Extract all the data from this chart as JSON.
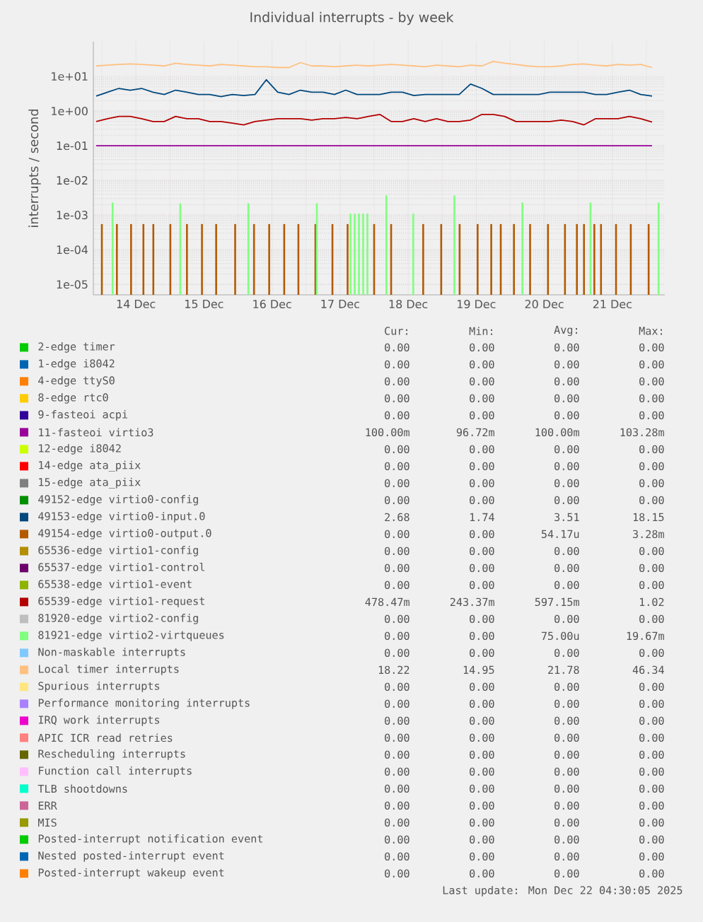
{
  "chart_data": {
    "type": "line",
    "title": "Individual interrupts - by week",
    "ylabel": "interrupts / second",
    "log": "y",
    "grid": true,
    "legend": "bottom",
    "line_style": "solid",
    "xlim": [
      "2025-12-13T21:00",
      "2025-12-22T06:30"
    ],
    "xticks": [
      {
        "value": "2025-12-14",
        "label": null
      },
      {
        "value": "2025-12-14T12:00",
        "label": "14 Dec"
      },
      {
        "value": "2025-12-15",
        "label": null
      },
      {
        "value": "2025-12-15T12:00",
        "label": "15 Dec"
      },
      {
        "value": "2025-12-16",
        "label": null
      },
      {
        "value": "2025-12-16T12:00",
        "label": "16 Dec"
      },
      {
        "value": "2025-12-17",
        "label": null
      },
      {
        "value": "2025-12-17T12:00",
        "label": "17 Dec"
      },
      {
        "value": "2025-12-18",
        "label": null
      },
      {
        "value": "2025-12-18T12:00",
        "label": "18 Dec"
      },
      {
        "value": "2025-12-19",
        "label": null
      },
      {
        "value": "2025-12-19T12:00",
        "label": "19 Dec"
      },
      {
        "value": "2025-12-20",
        "label": null
      },
      {
        "value": "2025-12-20T12:00",
        "label": "20 Dec"
      },
      {
        "value": "2025-12-21",
        "label": null
      },
      {
        "value": "2025-12-21T12:00",
        "label": "21 Dec"
      },
      {
        "value": "2025-12-22",
        "label": null
      }
    ],
    "ylim": [
      5e-06,
      100
    ],
    "yticks": [
      {
        "value": 1e-05,
        "label": "1e-05"
      },
      {
        "value": 0.0001,
        "label": "1e-04"
      },
      {
        "value": 0.001,
        "label": "1e-03"
      },
      {
        "value": 0.01,
        "label": "1e-02"
      },
      {
        "value": 0.1,
        "label": "1e-01"
      },
      {
        "value": 1,
        "label": "1e+00"
      },
      {
        "value": 10,
        "label": "1e+01"
      }
    ],
    "x": [
      "2025-12-13T22:00",
      "2025-12-14T02:00",
      "2025-12-14T06:00",
      "2025-12-14T10:00",
      "2025-12-14T14:00",
      "2025-12-14T18:00",
      "2025-12-14T22:00",
      "2025-12-15T02:00",
      "2025-12-15T06:00",
      "2025-12-15T10:00",
      "2025-12-15T14:00",
      "2025-12-15T18:00",
      "2025-12-15T22:00",
      "2025-12-16T02:00",
      "2025-12-16T06:00",
      "2025-12-16T10:00",
      "2025-12-16T14:00",
      "2025-12-16T18:00",
      "2025-12-16T22:00",
      "2025-12-17T02:00",
      "2025-12-17T06:00",
      "2025-12-17T10:00",
      "2025-12-17T14:00",
      "2025-12-17T18:00",
      "2025-12-17T22:00",
      "2025-12-18T02:00",
      "2025-12-18T06:00",
      "2025-12-18T10:00",
      "2025-12-18T14:00",
      "2025-12-18T18:00",
      "2025-12-18T22:00",
      "2025-12-19T02:00",
      "2025-12-19T06:00",
      "2025-12-19T10:00",
      "2025-12-19T14:00",
      "2025-12-19T18:00",
      "2025-12-19T22:00",
      "2025-12-20T02:00",
      "2025-12-20T06:00",
      "2025-12-20T10:00",
      "2025-12-20T14:00",
      "2025-12-20T18:00",
      "2025-12-20T22:00",
      "2025-12-21T02:00",
      "2025-12-21T06:00",
      "2025-12-21T10:00",
      "2025-12-21T14:00",
      "2025-12-21T18:00",
      "2025-12-21T22:00",
      "2025-12-22T02:00"
    ],
    "series": [
      {
        "name": "2-edge timer",
        "color": "#00cc00",
        "values": [
          null,
          null,
          null,
          null,
          null,
          null,
          null,
          null,
          null,
          null,
          null,
          null,
          null,
          null,
          null,
          null,
          null,
          null,
          null,
          null,
          null,
          null,
          null,
          null,
          null,
          null,
          null,
          null,
          null,
          null,
          null,
          null,
          null,
          null,
          null,
          null,
          null,
          null,
          null,
          null,
          null,
          null,
          null,
          null,
          null,
          null,
          null,
          null,
          null,
          null
        ]
      },
      {
        "name": "1-edge i8042",
        "color": "#0066b3",
        "values": [
          null,
          null,
          null,
          null,
          null,
          null,
          null,
          null,
          null,
          null,
          null,
          null,
          null,
          null,
          null,
          null,
          null,
          null,
          null,
          null,
          null,
          null,
          null,
          null,
          null,
          null,
          null,
          null,
          null,
          null,
          null,
          null,
          null,
          null,
          null,
          null,
          null,
          null,
          null,
          null,
          null,
          null,
          null,
          null,
          null,
          null,
          null,
          null,
          null,
          null
        ]
      },
      {
        "name": "4-edge ttyS0",
        "color": "#ff8000",
        "values": [
          null,
          null,
          null,
          null,
          null,
          null,
          null,
          null,
          null,
          null,
          null,
          null,
          null,
          null,
          null,
          null,
          null,
          null,
          null,
          null,
          null,
          null,
          null,
          null,
          null,
          null,
          null,
          null,
          null,
          null,
          null,
          null,
          null,
          null,
          null,
          null,
          null,
          null,
          null,
          null,
          null,
          null,
          null,
          null,
          null,
          null,
          null,
          null,
          null,
          null
        ]
      },
      {
        "name": "8-edge rtc0",
        "color": "#ffcc00",
        "values": [
          null,
          null,
          null,
          null,
          null,
          null,
          null,
          null,
          null,
          null,
          null,
          null,
          null,
          null,
          null,
          null,
          null,
          null,
          null,
          null,
          null,
          null,
          null,
          null,
          null,
          null,
          null,
          null,
          null,
          null,
          null,
          null,
          null,
          null,
          null,
          null,
          null,
          null,
          null,
          null,
          null,
          null,
          null,
          null,
          null,
          null,
          null,
          null,
          null,
          null
        ]
      },
      {
        "name": "9-fasteoi acpi",
        "color": "#330099",
        "values": [
          null,
          null,
          null,
          null,
          null,
          null,
          null,
          null,
          null,
          null,
          null,
          null,
          null,
          null,
          null,
          null,
          null,
          null,
          null,
          null,
          null,
          null,
          null,
          null,
          null,
          null,
          null,
          null,
          null,
          null,
          null,
          null,
          null,
          null,
          null,
          null,
          null,
          null,
          null,
          null,
          null,
          null,
          null,
          null,
          null,
          null,
          null,
          null,
          null,
          null
        ]
      },
      {
        "name": "11-fasteoi virtio3",
        "color": "#990099",
        "values": [
          0.1,
          0.1,
          0.1,
          0.1,
          0.1,
          0.1,
          0.1,
          0.1,
          0.1,
          0.1,
          0.1,
          0.1,
          0.1,
          0.1,
          0.1,
          0.1,
          0.1,
          0.1,
          0.1,
          0.1,
          0.1,
          0.1,
          0.1,
          0.1,
          0.1,
          0.1,
          0.1,
          0.1,
          0.1,
          0.1,
          0.1,
          0.1,
          0.1,
          0.1,
          0.1,
          0.1,
          0.1,
          0.1,
          0.1,
          0.1,
          0.1,
          0.1,
          0.1,
          0.1,
          0.1,
          0.1,
          0.1,
          0.1,
          0.1,
          0.1
        ]
      },
      {
        "name": "12-edge i8042",
        "color": "#ccff00",
        "values": [
          null,
          null,
          null,
          null,
          null,
          null,
          null,
          null,
          null,
          null,
          null,
          null,
          null,
          null,
          null,
          null,
          null,
          null,
          null,
          null,
          null,
          null,
          null,
          null,
          null,
          null,
          null,
          null,
          null,
          null,
          null,
          null,
          null,
          null,
          null,
          null,
          null,
          null,
          null,
          null,
          null,
          null,
          null,
          null,
          null,
          null,
          null,
          null,
          null,
          null
        ]
      },
      {
        "name": "14-edge ata_piix",
        "color": "#ff0000",
        "values": [
          null,
          null,
          null,
          null,
          null,
          null,
          null,
          null,
          null,
          null,
          null,
          null,
          null,
          null,
          null,
          null,
          null,
          null,
          null,
          null,
          null,
          null,
          null,
          null,
          null,
          null,
          null,
          null,
          null,
          null,
          null,
          null,
          null,
          null,
          null,
          null,
          null,
          null,
          null,
          null,
          null,
          null,
          null,
          null,
          null,
          null,
          null,
          null,
          null,
          null
        ]
      },
      {
        "name": "15-edge ata_piix",
        "color": "#808080",
        "values": [
          null,
          null,
          null,
          null,
          null,
          null,
          null,
          null,
          null,
          null,
          null,
          null,
          null,
          null,
          null,
          null,
          null,
          null,
          null,
          null,
          null,
          null,
          null,
          null,
          null,
          null,
          null,
          null,
          null,
          null,
          null,
          null,
          null,
          null,
          null,
          null,
          null,
          null,
          null,
          null,
          null,
          null,
          null,
          null,
          null,
          null,
          null,
          null,
          null,
          null
        ]
      },
      {
        "name": "49152-edge virtio0-config",
        "color": "#008f00",
        "values": [
          null,
          null,
          null,
          null,
          null,
          null,
          null,
          null,
          null,
          null,
          null,
          null,
          null,
          null,
          null,
          null,
          null,
          null,
          null,
          null,
          null,
          null,
          null,
          null,
          null,
          null,
          null,
          null,
          null,
          null,
          null,
          null,
          null,
          null,
          null,
          null,
          null,
          null,
          null,
          null,
          null,
          null,
          null,
          null,
          null,
          null,
          null,
          null,
          null,
          null
        ]
      },
      {
        "name": "49153-edge virtio0-input.0",
        "color": "#00487d",
        "values": [
          2.7,
          3.5,
          4.5,
          4,
          4.5,
          3.5,
          3,
          4,
          3.5,
          3,
          3,
          2.6,
          3,
          2.8,
          3,
          8,
          3.5,
          3,
          4,
          3.5,
          3.5,
          3,
          4,
          3,
          3,
          3,
          3.5,
          3.5,
          2.8,
          3,
          3,
          3,
          3,
          6,
          4.5,
          3,
          3,
          3,
          3,
          3,
          3.5,
          3.5,
          3.5,
          3.5,
          3,
          3,
          3.5,
          4,
          3,
          2.7
        ]
      },
      {
        "name": "49154-edge virtio0-output.0",
        "color": "#b35a00",
        "type": "bar",
        "x": [
          "2025-12-14T00:00",
          "2025-12-14T05:18",
          "2025-12-14T10:18",
          "2025-12-14T14:39",
          "2025-12-14T18:09",
          "2025-12-15T00:09",
          "2025-12-15T06:00",
          "2025-12-15T11:18",
          "2025-12-15T16:18",
          "2025-12-15T23:00",
          "2025-12-16T05:39",
          "2025-12-16T11:00",
          "2025-12-16T16:18",
          "2025-12-16T21:18",
          "2025-12-17T03:18",
          "2025-12-17T09:18",
          "2025-12-17T14:39",
          "2025-12-18T00:00",
          "2025-12-18T06:00",
          "2025-12-18T17:18",
          "2025-12-18T23:39",
          "2025-12-19T06:09",
          "2025-12-19T12:30",
          "2025-12-19T17:18",
          "2025-12-19T20:39",
          "2025-12-20T01:18",
          "2025-12-20T07:00",
          "2025-12-20T13:18",
          "2025-12-20T19:18",
          "2025-12-20T23:30",
          "2025-12-21T02:00",
          "2025-12-21T05:39",
          "2025-12-21T08:00",
          "2025-12-21T13:18",
          "2025-12-21T18:30",
          "2025-12-22T00:48"
        ],
        "values": [
          0.00055,
          0.00055,
          0.00055,
          0.00055,
          0.00055,
          0.00055,
          0.00055,
          0.00055,
          0.00055,
          0.00055,
          0.00055,
          0.00055,
          0.00055,
          0.00055,
          0.00055,
          0.00055,
          0.00055,
          0.00055,
          0.00055,
          0.00055,
          0.00055,
          0.00055,
          0.00055,
          0.00055,
          0.00055,
          0.00055,
          0.00055,
          0.00055,
          0.00055,
          0.00055,
          0.00055,
          0.00055,
          0.00055,
          0.00055,
          0.00055,
          0.00055
        ]
      },
      {
        "name": "65536-edge virtio1-config",
        "color": "#b38f00",
        "values": [
          null,
          null,
          null,
          null,
          null,
          null,
          null,
          null,
          null,
          null,
          null,
          null,
          null,
          null,
          null,
          null,
          null,
          null,
          null,
          null,
          null,
          null,
          null,
          null,
          null,
          null,
          null,
          null,
          null,
          null,
          null,
          null,
          null,
          null,
          null,
          null,
          null,
          null,
          null,
          null,
          null,
          null,
          null,
          null,
          null,
          null,
          null,
          null,
          null,
          null
        ]
      },
      {
        "name": "65537-edge virtio1-control",
        "color": "#6b006b",
        "values": [
          null,
          null,
          null,
          null,
          null,
          null,
          null,
          null,
          null,
          null,
          null,
          null,
          null,
          null,
          null,
          null,
          null,
          null,
          null,
          null,
          null,
          null,
          null,
          null,
          null,
          null,
          null,
          null,
          null,
          null,
          null,
          null,
          null,
          null,
          null,
          null,
          null,
          null,
          null,
          null,
          null,
          null,
          null,
          null,
          null,
          null,
          null,
          null,
          null,
          null
        ]
      },
      {
        "name": "65538-edge virtio1-event",
        "color": "#8fb300",
        "values": [
          null,
          null,
          null,
          null,
          null,
          null,
          null,
          null,
          null,
          null,
          null,
          null,
          null,
          null,
          null,
          null,
          null,
          null,
          null,
          null,
          null,
          null,
          null,
          null,
          null,
          null,
          null,
          null,
          null,
          null,
          null,
          null,
          null,
          null,
          null,
          null,
          null,
          null,
          null,
          null,
          null,
          null,
          null,
          null,
          null,
          null,
          null,
          null,
          null,
          null
        ]
      },
      {
        "name": "65539-edge virtio1-request",
        "color": "#b30000",
        "values": [
          0.5,
          0.6,
          0.7,
          0.7,
          0.6,
          0.5,
          0.5,
          0.7,
          0.6,
          0.6,
          0.5,
          0.5,
          0.45,
          0.4,
          0.5,
          0.55,
          0.6,
          0.6,
          0.6,
          0.55,
          0.6,
          0.6,
          0.65,
          0.6,
          0.7,
          0.8,
          0.5,
          0.5,
          0.6,
          0.5,
          0.6,
          0.5,
          0.5,
          0.55,
          0.8,
          0.8,
          0.7,
          0.5,
          0.5,
          0.5,
          0.5,
          0.55,
          0.5,
          0.4,
          0.6,
          0.6,
          0.6,
          0.7,
          0.6,
          0.48
        ]
      },
      {
        "name": "81920-edge virtio2-config",
        "color": "#bebebe",
        "values": [
          null,
          null,
          null,
          null,
          null,
          null,
          null,
          null,
          null,
          null,
          null,
          null,
          null,
          null,
          null,
          null,
          null,
          null,
          null,
          null,
          null,
          null,
          null,
          null,
          null,
          null,
          null,
          null,
          null,
          null,
          null,
          null,
          null,
          null,
          null,
          null,
          null,
          null,
          null,
          null,
          null,
          null,
          null,
          null,
          null,
          null,
          null,
          null,
          null,
          null
        ]
      },
      {
        "name": "81921-edge virtio2-virtqueues",
        "color": "#80ff80",
        "type": "bar",
        "x": [
          "2025-12-14T03:48",
          "2025-12-15T03:39",
          "2025-12-16T03:39",
          "2025-12-17T03:48",
          "2025-12-17T15:39",
          "2025-12-17T17:09",
          "2025-12-17T18:39",
          "2025-12-17T20:09",
          "2025-12-17T21:39",
          "2025-12-18T04:18",
          "2025-12-18T13:48",
          "2025-12-19T04:18",
          "2025-12-20T04:18",
          "2025-12-21T04:18",
          "2025-12-22T04:18"
        ],
        "values": [
          0.0023,
          0.0022,
          0.0022,
          0.0022,
          0.0011,
          0.0011,
          0.0011,
          0.0011,
          0.0011,
          0.0037,
          0.0011,
          0.0037,
          0.0023,
          0.0023,
          0.0023
        ]
      },
      {
        "name": "Non-maskable interrupts",
        "color": "#80c9ff",
        "values": [
          null,
          null,
          null,
          null,
          null,
          null,
          null,
          null,
          null,
          null,
          null,
          null,
          null,
          null,
          null,
          null,
          null,
          null,
          null,
          null,
          null,
          null,
          null,
          null,
          null,
          null,
          null,
          null,
          null,
          null,
          null,
          null,
          null,
          null,
          null,
          null,
          null,
          null,
          null,
          null,
          null,
          null,
          null,
          null,
          null,
          null,
          null,
          null,
          null,
          null
        ]
      },
      {
        "name": "Local timer interrupts",
        "color": "#ffc080",
        "values": [
          20,
          21,
          22,
          23,
          22,
          21,
          20,
          24,
          22,
          21,
          20,
          22,
          21,
          20,
          19,
          19,
          18,
          18,
          25,
          20,
          20,
          19,
          20,
          21,
          20,
          21,
          22,
          21,
          20,
          19,
          21,
          20,
          19,
          21,
          20,
          27,
          24,
          22,
          20,
          19,
          19,
          20,
          22,
          23,
          21,
          20,
          22,
          21,
          22,
          18
        ]
      },
      {
        "name": "Spurious interrupts",
        "color": "#ffe680",
        "values": [
          null,
          null,
          null,
          null,
          null,
          null,
          null,
          null,
          null,
          null,
          null,
          null,
          null,
          null,
          null,
          null,
          null,
          null,
          null,
          null,
          null,
          null,
          null,
          null,
          null,
          null,
          null,
          null,
          null,
          null,
          null,
          null,
          null,
          null,
          null,
          null,
          null,
          null,
          null,
          null,
          null,
          null,
          null,
          null,
          null,
          null,
          null,
          null,
          null,
          null
        ]
      },
      {
        "name": "Performance monitoring interrupts",
        "color": "#aa80ff",
        "values": [
          null,
          null,
          null,
          null,
          null,
          null,
          null,
          null,
          null,
          null,
          null,
          null,
          null,
          null,
          null,
          null,
          null,
          null,
          null,
          null,
          null,
          null,
          null,
          null,
          null,
          null,
          null,
          null,
          null,
          null,
          null,
          null,
          null,
          null,
          null,
          null,
          null,
          null,
          null,
          null,
          null,
          null,
          null,
          null,
          null,
          null,
          null,
          null,
          null,
          null
        ]
      },
      {
        "name": "IRQ work interrupts",
        "color": "#ee00cc",
        "values": [
          null,
          null,
          null,
          null,
          null,
          null,
          null,
          null,
          null,
          null,
          null,
          null,
          null,
          null,
          null,
          null,
          null,
          null,
          null,
          null,
          null,
          null,
          null,
          null,
          null,
          null,
          null,
          null,
          null,
          null,
          null,
          null,
          null,
          null,
          null,
          null,
          null,
          null,
          null,
          null,
          null,
          null,
          null,
          null,
          null,
          null,
          null,
          null,
          null,
          null
        ]
      },
      {
        "name": "APIC ICR read retries",
        "color": "#ff8080",
        "values": [
          null,
          null,
          null,
          null,
          null,
          null,
          null,
          null,
          null,
          null,
          null,
          null,
          null,
          null,
          null,
          null,
          null,
          null,
          null,
          null,
          null,
          null,
          null,
          null,
          null,
          null,
          null,
          null,
          null,
          null,
          null,
          null,
          null,
          null,
          null,
          null,
          null,
          null,
          null,
          null,
          null,
          null,
          null,
          null,
          null,
          null,
          null,
          null,
          null,
          null
        ]
      },
      {
        "name": "Rescheduling interrupts",
        "color": "#666600",
        "values": [
          null,
          null,
          null,
          null,
          null,
          null,
          null,
          null,
          null,
          null,
          null,
          null,
          null,
          null,
          null,
          null,
          null,
          null,
          null,
          null,
          null,
          null,
          null,
          null,
          null,
          null,
          null,
          null,
          null,
          null,
          null,
          null,
          null,
          null,
          null,
          null,
          null,
          null,
          null,
          null,
          null,
          null,
          null,
          null,
          null,
          null,
          null,
          null,
          null,
          null
        ]
      },
      {
        "name": "Function call interrupts",
        "color": "#ffbfff",
        "values": [
          null,
          null,
          null,
          null,
          null,
          null,
          null,
          null,
          null,
          null,
          null,
          null,
          null,
          null,
          null,
          null,
          null,
          null,
          null,
          null,
          null,
          null,
          null,
          null,
          null,
          null,
          null,
          null,
          null,
          null,
          null,
          null,
          null,
          null,
          null,
          null,
          null,
          null,
          null,
          null,
          null,
          null,
          null,
          null,
          null,
          null,
          null,
          null,
          null,
          null
        ]
      },
      {
        "name": "TLB shootdowns",
        "color": "#00ffcc",
        "values": [
          null,
          null,
          null,
          null,
          null,
          null,
          null,
          null,
          null,
          null,
          null,
          null,
          null,
          null,
          null,
          null,
          null,
          null,
          null,
          null,
          null,
          null,
          null,
          null,
          null,
          null,
          null,
          null,
          null,
          null,
          null,
          null,
          null,
          null,
          null,
          null,
          null,
          null,
          null,
          null,
          null,
          null,
          null,
          null,
          null,
          null,
          null,
          null,
          null,
          null
        ]
      },
      {
        "name": "ERR",
        "color": "#cc6699",
        "values": [
          null,
          null,
          null,
          null,
          null,
          null,
          null,
          null,
          null,
          null,
          null,
          null,
          null,
          null,
          null,
          null,
          null,
          null,
          null,
          null,
          null,
          null,
          null,
          null,
          null,
          null,
          null,
          null,
          null,
          null,
          null,
          null,
          null,
          null,
          null,
          null,
          null,
          null,
          null,
          null,
          null,
          null,
          null,
          null,
          null,
          null,
          null,
          null,
          null,
          null
        ]
      },
      {
        "name": "MIS",
        "color": "#999900",
        "values": [
          null,
          null,
          null,
          null,
          null,
          null,
          null,
          null,
          null,
          null,
          null,
          null,
          null,
          null,
          null,
          null,
          null,
          null,
          null,
          null,
          null,
          null,
          null,
          null,
          null,
          null,
          null,
          null,
          null,
          null,
          null,
          null,
          null,
          null,
          null,
          null,
          null,
          null,
          null,
          null,
          null,
          null,
          null,
          null,
          null,
          null,
          null,
          null,
          null,
          null
        ]
      },
      {
        "name": "Posted-interrupt notification event",
        "color": "#00cc00",
        "values": [
          null,
          null,
          null,
          null,
          null,
          null,
          null,
          null,
          null,
          null,
          null,
          null,
          null,
          null,
          null,
          null,
          null,
          null,
          null,
          null,
          null,
          null,
          null,
          null,
          null,
          null,
          null,
          null,
          null,
          null,
          null,
          null,
          null,
          null,
          null,
          null,
          null,
          null,
          null,
          null,
          null,
          null,
          null,
          null,
          null,
          null,
          null,
          null,
          null,
          null
        ]
      },
      {
        "name": "Nested posted-interrupt event",
        "color": "#0066b3",
        "values": [
          null,
          null,
          null,
          null,
          null,
          null,
          null,
          null,
          null,
          null,
          null,
          null,
          null,
          null,
          null,
          null,
          null,
          null,
          null,
          null,
          null,
          null,
          null,
          null,
          null,
          null,
          null,
          null,
          null,
          null,
          null,
          null,
          null,
          null,
          null,
          null,
          null,
          null,
          null,
          null,
          null,
          null,
          null,
          null,
          null,
          null,
          null,
          null,
          null,
          null
        ]
      },
      {
        "name": "Posted-interrupt wakeup event",
        "color": "#ff8000",
        "values": [
          null,
          null,
          null,
          null,
          null,
          null,
          null,
          null,
          null,
          null,
          null,
          null,
          null,
          null,
          null,
          null,
          null,
          null,
          null,
          null,
          null,
          null,
          null,
          null,
          null,
          null,
          null,
          null,
          null,
          null,
          null,
          null,
          null,
          null,
          null,
          null,
          null,
          null,
          null,
          null,
          null,
          null,
          null,
          null,
          null,
          null,
          null,
          null,
          null,
          null
        ]
      }
    ],
    "annotations": [
      "Cur:",
      "Min:",
      "Avg:",
      "Max:",
      "0.00",
      "0.00",
      "0.00",
      "0.00",
      "0.00",
      "0.00",
      "0.00",
      "0.00",
      "0.00",
      "0.00",
      "0.00",
      "0.00",
      "0.00",
      "0.00",
      "0.00",
      "0.00",
      "0.00",
      "0.00",
      "0.00",
      "0.00",
      "100.00m",
      "96.72m",
      "100.00m",
      "103.28m",
      "0.00",
      "0.00",
      "0.00",
      "0.00",
      "0.00",
      "0.00",
      "0.00",
      "0.00",
      "0.00",
      "0.00",
      "0.00",
      "0.00",
      "0.00",
      "0.00",
      "0.00",
      "0.00",
      "2.68",
      "1.74",
      "3.51",
      "18.15",
      "0.00",
      "0.00",
      "54.17u",
      "3.28m",
      "0.00",
      "0.00",
      "0.00",
      "0.00",
      "0.00",
      "0.00",
      "0.00",
      "0.00",
      "0.00",
      "0.00",
      "0.00",
      "0.00",
      "478.47m",
      "243.37m",
      "597.15m",
      "1.02",
      "0.00",
      "0.00",
      "0.00",
      "0.00",
      "0.00",
      "0.00",
      "75.00u",
      "19.67m",
      "0.00",
      "0.00",
      "0.00",
      "0.00",
      "18.22",
      "14.95",
      "21.78",
      "46.34",
      "0.00",
      "0.00",
      "0.00",
      "0.00",
      "0.00",
      "0.00",
      "0.00",
      "0.00",
      "0.00",
      "0.00",
      "0.00",
      "0.00",
      "0.00",
      "0.00",
      "0.00",
      "0.00",
      "0.00",
      "0.00",
      "0.00",
      "0.00",
      "0.00",
      "0.00",
      "0.00",
      "0.00",
      "0.00",
      "0.00",
      "0.00",
      "0.00",
      "0.00",
      "0.00",
      "0.00",
      "0.00",
      "0.00",
      "0.00",
      "0.00",
      "0.00",
      "0.00",
      "0.00",
      "0.00",
      "0.00",
      "0.00",
      "0.00",
      "0.00",
      "0.00",
      "0.00",
      "0.00",
      "0.00",
      "0.00",
      "Last update: Mon Dec 22 04:30:05 2025"
    ]
  }
}
